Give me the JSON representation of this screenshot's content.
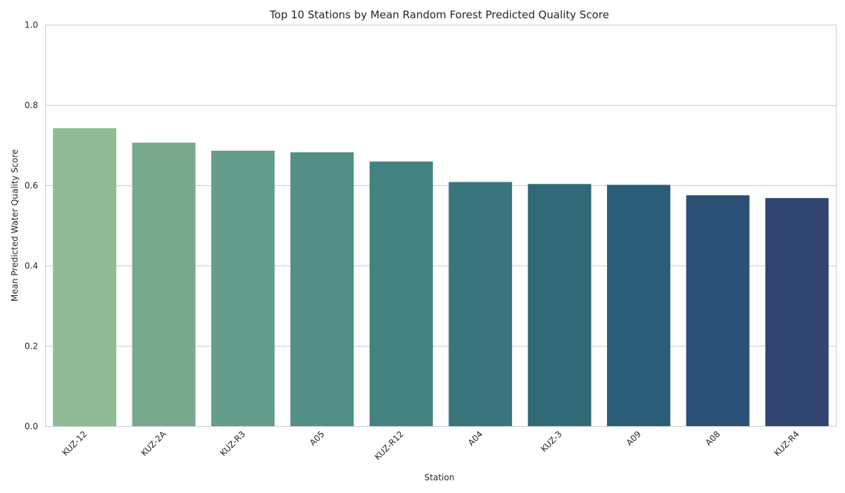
{
  "chart_data": {
    "type": "bar",
    "title": "Top 10 Stations by Mean Random Forest Predicted Quality Score",
    "xlabel": "Station",
    "ylabel": "Mean Predicted Water Quality Score",
    "categories": [
      "KUZ-12",
      "KUZ-2A",
      "KUZ-R3",
      "A05",
      "KUZ-R12",
      "A04",
      "KUZ-3",
      "A09",
      "A08",
      "KUZ-R4"
    ],
    "values": [
      0.742,
      0.706,
      0.686,
      0.682,
      0.659,
      0.608,
      0.603,
      0.601,
      0.575,
      0.568
    ],
    "colors": [
      "#8fba94",
      "#78a98f",
      "#649d8b",
      "#528f86",
      "#448181",
      "#3a757e",
      "#306978",
      "#2a5d78",
      "#2d5077",
      "#324470"
    ],
    "ylim": [
      0,
      1.0
    ],
    "yticks": [
      "0.0",
      "0.2",
      "0.4",
      "0.6",
      "0.8",
      "1.0"
    ],
    "grid": true
  }
}
